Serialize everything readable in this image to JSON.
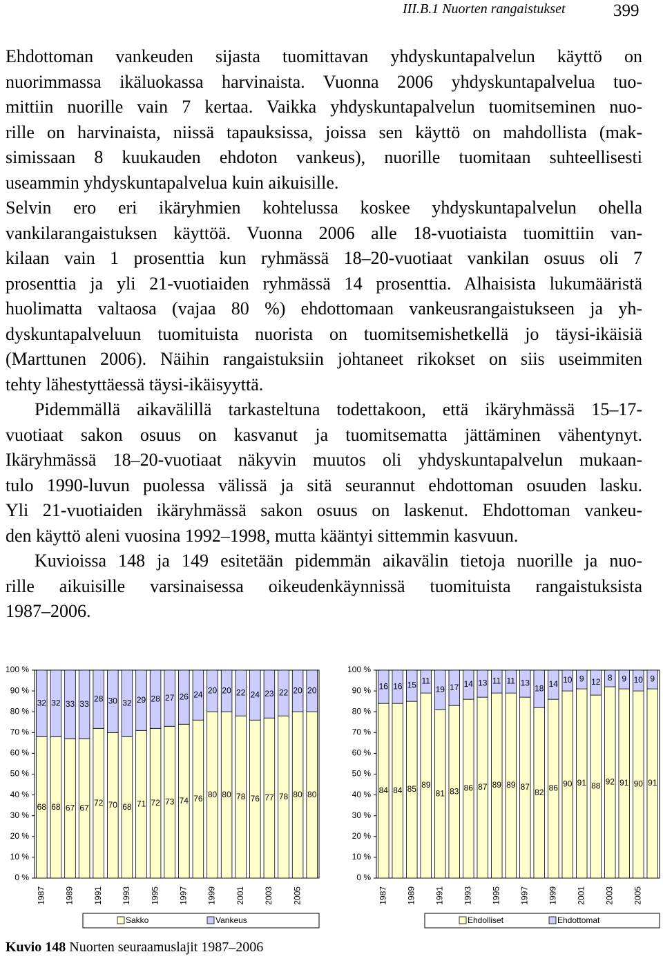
{
  "header": {
    "section": "III.B.1 Nuorten rangaistukset",
    "page": "399"
  },
  "paragraphs": [
    [
      "Ehdottoman vankeuden sijasta tuomittavan yhdyskuntapalvelun käyttö on",
      "nuorimmassa ikäluokassa harvinaista. Vuonna 2006 yhdyskuntapalvelua tuo-",
      "mittiin nuorille vain 7 kertaa. Vaikka yhdyskuntapalvelun tuomitseminen nuo-",
      "rille on harvinaista, niissä tapauksissa, joissa sen käyttö on mahdollista (mak-",
      "simissaan 8 kuukauden ehdoton vankeus), nuorille tuomitaan suhteellisesti",
      "useammin yhdyskuntapalvelua kuin aikuisille."
    ],
    [
      "Selvin ero eri ikäryhmien kohtelussa koskee yhdyskuntapalvelun ohella",
      "vankilarangaistuksen käyttöä. Vuonna 2006 alle 18-vuotiaista tuomittiin van-",
      "kilaan vain 1 prosenttia kun ryhmässä 18–20-vuotiaat vankilan osuus oli 7",
      "prosenttia ja yli 21-vuotiaiden ryhmässä 14 prosenttia. Alhaisista lukumääristä",
      "huolimatta valtaosa (vajaa 80 %) ehdottomaan vankeusrangaistukseen ja yh-",
      "dyskuntapalveluun tuomituista nuorista on tuomitsemishetkellä jo täysi-ikäisiä",
      "(Marttunen 2006). Näihin rangaistuksiin johtaneet rikokset on siis useimmiten",
      "tehty lähestyttäessä täysi-ikäisyyttä."
    ],
    [
      "Pidemmällä aikavälillä tarkasteltuna todettakoon, että ikäryhmässä 15–17-",
      "vuotiaat sakon osuus on kasvanut ja tuomitsematta jättäminen vähentynyt.",
      "Ikäryhmässä 18–20-vuotiaat näkyvin muutos oli yhdyskuntapalvelun mukaan-",
      "tulo 1990-luvun puolessa välissä ja sitä seurannut ehdottoman osuuden lasku.",
      "Yli 21-vuotiaiden ikäryhmässä sakon osuus on laskenut. Ehdottoman vankeu-",
      "den käyttö aleni vuosina 1992–1998, mutta kääntyi sittemmin kasvuun."
    ],
    [
      "Kuvioissa 148 ja 149 esitetään pidemmän aikavälin tietoja nuorille ja nuo-",
      "rille aikuisille varsinaisessa oikeudenkäynnissä tuomituista rangaistuksista",
      "1987–2006."
    ]
  ],
  "chart_data": [
    {
      "type": "bar",
      "stacked": true,
      "categories": [
        "1987",
        null,
        "1989",
        null,
        "1991",
        null,
        "1993",
        null,
        "1995",
        null,
        "1997",
        null,
        "1999",
        null,
        "2001",
        null,
        "2003",
        null,
        "2005",
        null
      ],
      "series": [
        {
          "name": "Sakko",
          "color": "#ffffcc",
          "values": [
            68,
            68,
            67,
            67,
            72,
            70,
            68,
            71,
            72,
            73,
            74,
            76,
            80,
            80,
            78,
            76,
            77,
            78,
            80,
            80
          ]
        },
        {
          "name": "Vankeus",
          "color": "#ccccff",
          "values": [
            32,
            32,
            33,
            33,
            28,
            30,
            32,
            29,
            28,
            27,
            26,
            24,
            20,
            20,
            22,
            24,
            23,
            22,
            20,
            20
          ]
        }
      ],
      "ylim": [
        0,
        100
      ],
      "yticks": [
        {
          "value": 0,
          "label": "0 %"
        },
        {
          "value": 10,
          "label": "10 %"
        },
        {
          "value": 20,
          "label": "20 %"
        },
        {
          "value": 30,
          "label": "30 %"
        },
        {
          "value": 40,
          "label": "40 %"
        },
        {
          "value": 50,
          "label": "50 %"
        },
        {
          "value": 60,
          "label": "60 %"
        },
        {
          "value": 70,
          "label": "70 %"
        },
        {
          "value": 80,
          "label": "80 %"
        },
        {
          "value": 90,
          "label": "90 %"
        },
        {
          "value": 100,
          "label": "100 %"
        }
      ]
    },
    {
      "type": "bar",
      "stacked": true,
      "categories": [
        "1987",
        null,
        "1989",
        null,
        "1991",
        null,
        "1993",
        null,
        "1995",
        null,
        "1997",
        null,
        "1999",
        null,
        "2001",
        null,
        "2003",
        null,
        "2005",
        null
      ],
      "series": [
        {
          "name": "Ehdolliset",
          "color": "#ffffcc",
          "values": [
            84,
            84,
            85,
            89,
            81,
            83,
            86,
            87,
            89,
            89,
            87,
            82,
            86,
            90,
            91,
            88,
            92,
            91,
            90,
            91
          ]
        },
        {
          "name": "Ehdottomat",
          "color": "#ccccff",
          "values": [
            16,
            16,
            15,
            11,
            19,
            17,
            14,
            13,
            11,
            11,
            13,
            18,
            14,
            10,
            9,
            12,
            8,
            9,
            10,
            9
          ]
        }
      ],
      "ylim": [
        0,
        100
      ],
      "yticks": [
        {
          "value": 0,
          "label": "0 %"
        },
        {
          "value": 10,
          "label": "10 %"
        },
        {
          "value": 20,
          "label": "20 %"
        },
        {
          "value": 30,
          "label": "30 %"
        },
        {
          "value": 40,
          "label": "40 %"
        },
        {
          "value": 50,
          "label": "50 %"
        },
        {
          "value": 60,
          "label": "60 %"
        },
        {
          "value": 70,
          "label": "70 %"
        },
        {
          "value": 80,
          "label": "80 %"
        },
        {
          "value": 90,
          "label": "90 %"
        },
        {
          "value": 100,
          "label": "100 %"
        }
      ]
    }
  ],
  "caption": {
    "label": "Kuvio 148",
    "text": "Nuorten seuraamuslajit 1987–2006"
  }
}
